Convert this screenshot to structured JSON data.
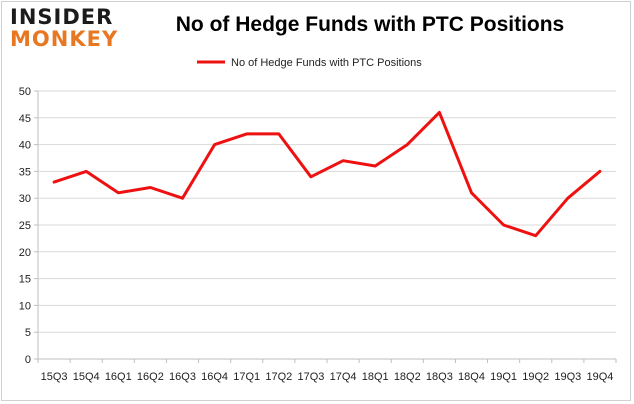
{
  "brand": {
    "line1": "INSIDER",
    "line2": "MONKEY"
  },
  "colors": {
    "series": "#ee1111",
    "grid": "#d9d9d9",
    "axis": "#bfbfbf",
    "brand_orange": "#e87722"
  },
  "chart_data": {
    "type": "line",
    "title": "No of Hedge Funds with PTC Positions",
    "xlabel": "",
    "ylabel": "",
    "categories": [
      "15Q3",
      "15Q4",
      "16Q1",
      "16Q2",
      "16Q3",
      "16Q4",
      "17Q1",
      "17Q2",
      "17Q3",
      "17Q4",
      "18Q1",
      "18Q2",
      "18Q3",
      "18Q4",
      "19Q1",
      "19Q2",
      "19Q3",
      "19Q4"
    ],
    "series": [
      {
        "name": "No of Hedge Funds with PTC Positions",
        "values": [
          33,
          35,
          31,
          32,
          30,
          40,
          42,
          42,
          34,
          37,
          36,
          40,
          46,
          31,
          25,
          23,
          30,
          35
        ]
      }
    ],
    "ylim": [
      0,
      50
    ],
    "yticks": [
      0,
      5,
      10,
      15,
      20,
      25,
      30,
      35,
      40,
      45,
      50
    ],
    "grid": true,
    "legend": "top-center"
  }
}
